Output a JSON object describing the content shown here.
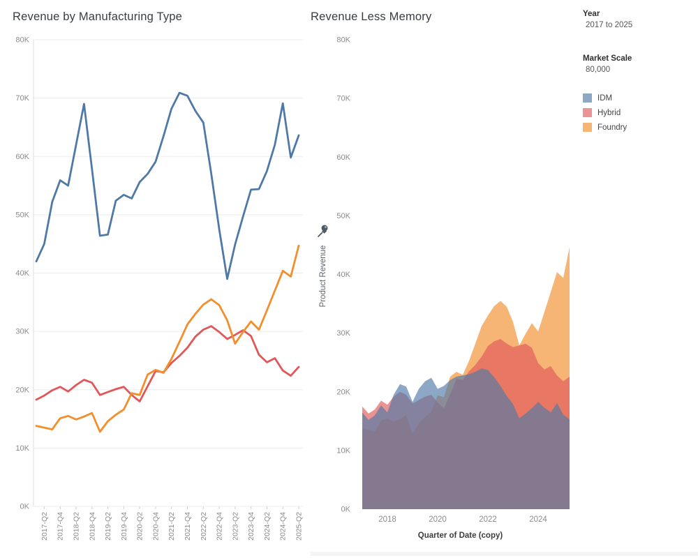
{
  "header": {
    "left_chart_title": "Revenue by Manufacturing Type",
    "right_chart_title": "Revenue Less Memory"
  },
  "sidebar": {
    "year_filter": {
      "label": "Year",
      "value": "2017 to 2025"
    },
    "market_scale": {
      "label": "Market Scale",
      "value": "80,000"
    },
    "legend": {
      "items": [
        {
          "label": "IDM",
          "color": "#8ca8c5"
        },
        {
          "label": "Hybrid",
          "color": "#eb9495"
        },
        {
          "label": "Foundry",
          "color": "#f6b575"
        }
      ]
    }
  },
  "colors": {
    "idm_line": "#4e79a7",
    "hybrid_line": "#e15759",
    "foundry_line": "#f28e2b",
    "grid": "#ececec",
    "tick_text": "#8a8a8a",
    "title_text": "#383d42",
    "pin_icon": "#4e5a66"
  },
  "chart_data": [
    {
      "type": "line",
      "title": "Revenue by Manufacturing Type",
      "unit": "K",
      "ylim": [
        0,
        80
      ],
      "grid": "horizontal",
      "y_tick_labels": [
        "0K",
        "10K",
        "20K",
        "30K",
        "40K",
        "50K",
        "60K",
        "70K",
        "80K"
      ],
      "x": [
        "2017-Q1",
        "2017-Q2",
        "2017-Q3",
        "2017-Q4",
        "2018-Q1",
        "2018-Q2",
        "2018-Q3",
        "2018-Q4",
        "2019-Q1",
        "2019-Q2",
        "2019-Q3",
        "2019-Q4",
        "2020-Q1",
        "2020-Q2",
        "2020-Q3",
        "2020-Q4",
        "2021-Q1",
        "2021-Q2",
        "2021-Q3",
        "2021-Q4",
        "2022-Q1",
        "2022-Q2",
        "2022-Q3",
        "2022-Q4",
        "2023-Q1",
        "2023-Q2",
        "2023-Q3",
        "2023-Q4",
        "2024-Q1",
        "2024-Q2",
        "2024-Q3",
        "2024-Q4",
        "2025-Q1",
        "2025-Q2"
      ],
      "x_tick_labels": [
        "2017-Q2",
        "2017-Q4",
        "2018-Q2",
        "2018-Q4",
        "2019-Q2",
        "2019-Q4",
        "2020-Q2",
        "2020-Q4",
        "2021-Q2",
        "2021-Q4",
        "2022-Q2",
        "2022-Q4",
        "2023-Q2",
        "2023-Q4",
        "2024-Q2",
        "2024-Q4",
        "2025-Q2"
      ],
      "x_tick_indices": [
        1,
        3,
        5,
        7,
        9,
        11,
        13,
        15,
        17,
        19,
        21,
        23,
        25,
        27,
        29,
        31,
        33
      ],
      "series": [
        {
          "name": "IDM",
          "color": "#4e79a7",
          "values": [
            42.0,
            45.0,
            52.2,
            55.9,
            55.0,
            62.0,
            69.0,
            57.8,
            46.4,
            46.6,
            52.4,
            53.4,
            52.8,
            55.6,
            57.0,
            59.1,
            63.5,
            68.2,
            70.9,
            70.4,
            67.8,
            65.8,
            57.0,
            47.5,
            39.0,
            44.9,
            49.7,
            54.3,
            54.4,
            57.5,
            62.0,
            69.1,
            59.8,
            63.6
          ]
        },
        {
          "name": "Hybrid",
          "color": "#e15759",
          "values": [
            18.3,
            19.0,
            19.9,
            20.5,
            19.7,
            20.8,
            21.7,
            21.2,
            19.1,
            19.6,
            20.1,
            20.5,
            19.1,
            18.0,
            20.6,
            23.2,
            23.0,
            24.6,
            25.8,
            27.2,
            29.1,
            30.3,
            30.9,
            29.9,
            28.7,
            29.4,
            30.2,
            29.2,
            26.0,
            24.7,
            25.4,
            23.3,
            22.4,
            23.9
          ]
        },
        {
          "name": "Foundry",
          "color": "#f28e2b",
          "values": [
            13.8,
            13.5,
            13.2,
            15.1,
            15.5,
            14.9,
            15.4,
            16.0,
            12.8,
            14.6,
            15.7,
            16.6,
            19.4,
            19.1,
            22.6,
            23.4,
            22.9,
            25.3,
            28.2,
            31.2,
            33.0,
            34.6,
            35.5,
            34.5,
            31.9,
            27.9,
            29.9,
            31.7,
            30.3,
            33.6,
            37.0,
            40.4,
            39.4,
            44.7
          ]
        }
      ]
    },
    {
      "type": "area",
      "title": "Revenue Less Memory",
      "xlabel": "Quarter of Date (copy)",
      "ylabel": "Product Revenue",
      "axis_pinned": true,
      "unit": "K",
      "ylim": [
        0,
        80
      ],
      "grid": "off",
      "fill_opacity": 0.65,
      "y_tick_labels": [
        "0K",
        "10K",
        "20K",
        "30K",
        "40K",
        "50K",
        "60K",
        "70K",
        "80K"
      ],
      "x": [
        "2017-Q1",
        "2017-Q2",
        "2017-Q3",
        "2017-Q4",
        "2018-Q1",
        "2018-Q2",
        "2018-Q3",
        "2018-Q4",
        "2019-Q1",
        "2019-Q2",
        "2019-Q3",
        "2019-Q4",
        "2020-Q1",
        "2020-Q2",
        "2020-Q3",
        "2020-Q4",
        "2021-Q1",
        "2021-Q2",
        "2021-Q3",
        "2021-Q4",
        "2022-Q1",
        "2022-Q2",
        "2022-Q3",
        "2022-Q4",
        "2023-Q1",
        "2023-Q2",
        "2023-Q3",
        "2023-Q4",
        "2024-Q1",
        "2024-Q2",
        "2024-Q3",
        "2024-Q4",
        "2025-Q1",
        "2025-Q2"
      ],
      "x_tick_labels": [
        "2018",
        "2020",
        "2022",
        "2024"
      ],
      "x_tick_indices": [
        4,
        12,
        20,
        28
      ],
      "series": [
        {
          "name": "IDM",
          "color": "#4e79a7",
          "values": [
            16.5,
            15.2,
            16.0,
            17.7,
            16.5,
            19.5,
            21.3,
            20.9,
            18.3,
            20.5,
            21.8,
            22.4,
            20.5,
            21.0,
            22.0,
            22.6,
            22.8,
            23.0,
            23.4,
            24.0,
            23.7,
            22.5,
            21.0,
            19.3,
            17.9,
            15.5,
            16.3,
            17.2,
            18.3,
            17.3,
            16.5,
            18.1,
            16.1,
            15.3
          ]
        },
        {
          "name": "Hybrid",
          "color": "#e15759",
          "values": [
            17.5,
            16.3,
            17.0,
            18.5,
            17.8,
            19.2,
            20.0,
            19.5,
            18.0,
            18.6,
            19.2,
            19.5,
            18.2,
            17.2,
            19.6,
            22.2,
            22.0,
            23.5,
            24.6,
            26.0,
            27.8,
            28.6,
            29.0,
            28.2,
            27.6,
            27.9,
            28.2,
            27.5,
            24.9,
            23.8,
            24.4,
            22.8,
            21.8,
            22.6
          ]
        },
        {
          "name": "Foundry",
          "color": "#f28e2b",
          "values": [
            13.8,
            13.5,
            13.2,
            15.1,
            15.5,
            14.9,
            15.4,
            16.0,
            12.8,
            14.6,
            15.7,
            16.6,
            19.4,
            19.1,
            22.6,
            23.4,
            22.9,
            25.3,
            28.2,
            31.2,
            33.0,
            34.6,
            35.5,
            34.5,
            31.9,
            27.9,
            29.9,
            31.7,
            30.3,
            33.6,
            37.0,
            40.4,
            39.4,
            44.7
          ]
        }
      ]
    }
  ]
}
